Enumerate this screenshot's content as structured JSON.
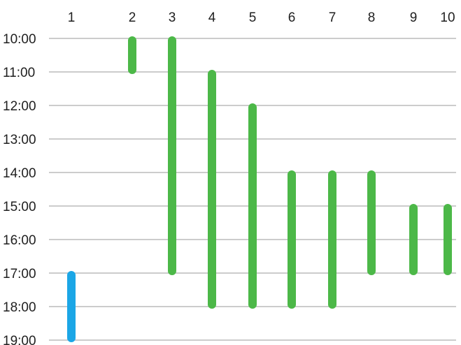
{
  "chart_data": {
    "type": "bar",
    "orientation": "vertical-range",
    "categories": [
      "1",
      "2",
      "3",
      "4",
      "5",
      "6",
      "7",
      "8",
      "9",
      "10"
    ],
    "y_ticks": [
      "10:00",
      "11:00",
      "12:00",
      "13:00",
      "14:00",
      "15:00",
      "16:00",
      "17:00",
      "18:00",
      "19:00"
    ],
    "ylim": [
      10,
      19
    ],
    "y_axis_inverted": true,
    "grid": true,
    "ranges": [
      {
        "category": "1",
        "start": 17,
        "end": 19,
        "color": "#1ba6e6"
      },
      {
        "category": "2",
        "start": 10,
        "end": 11,
        "color": "#4cb848"
      },
      {
        "category": "3",
        "start": 10,
        "end": 17,
        "color": "#4cb848"
      },
      {
        "category": "4",
        "start": 11,
        "end": 18,
        "color": "#4cb848"
      },
      {
        "category": "5",
        "start": 12,
        "end": 18,
        "color": "#4cb848"
      },
      {
        "category": "6",
        "start": 14,
        "end": 18,
        "color": "#4cb848"
      },
      {
        "category": "7",
        "start": 14,
        "end": 18,
        "color": "#4cb848"
      },
      {
        "category": "8",
        "start": 14,
        "end": 17,
        "color": "#4cb848"
      },
      {
        "category": "9",
        "start": 15,
        "end": 17,
        "color": "#4cb848"
      },
      {
        "category": "10",
        "start": 15,
        "end": 17,
        "color": "#4cb848"
      }
    ]
  }
}
